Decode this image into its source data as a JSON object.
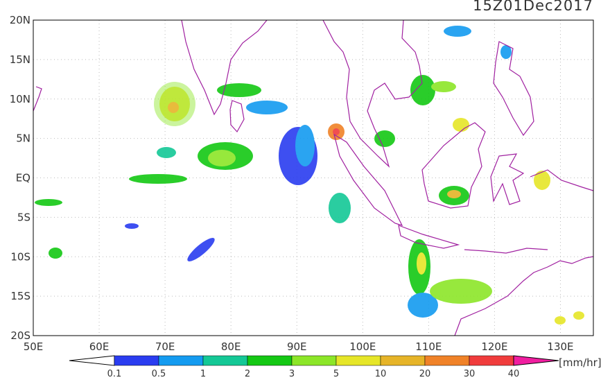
{
  "header": {
    "title": "15Z01Dec2017"
  },
  "map": {
    "lat_labels": [
      "20N",
      "15N",
      "10N",
      "5N",
      "EQ",
      "5S",
      "10S",
      "15S",
      "20S"
    ],
    "lon_labels": [
      "50E",
      "60E",
      "70E",
      "80E",
      "90E",
      "100E",
      "110E",
      "120E",
      "130E"
    ]
  },
  "colorbar": {
    "labels": [
      "0.1",
      "0.5",
      "1",
      "2",
      "3",
      "5",
      "10",
      "20",
      "30",
      "40"
    ],
    "colors": [
      "#2a3cf0",
      "#149bf0",
      "#14c896",
      "#14c814",
      "#8ce628",
      "#e6e628",
      "#e6b428",
      "#f08228",
      "#f03c3c"
    ],
    "unit": "[mm/hr]"
  }
}
